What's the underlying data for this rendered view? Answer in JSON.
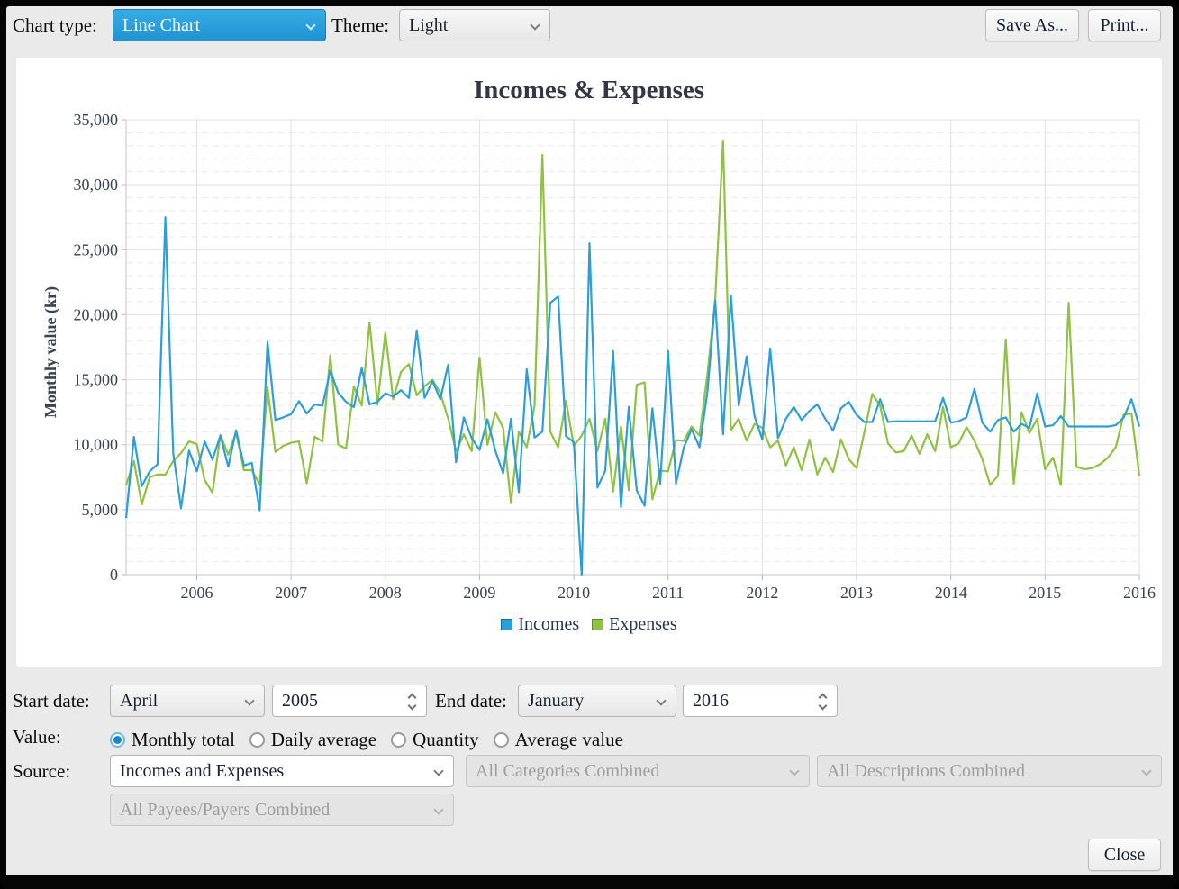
{
  "toolbar": {
    "chart_type_label": "Chart type:",
    "chart_type_value": "Line Chart",
    "theme_label": "Theme:",
    "theme_value": "Light",
    "save_as_label": "Save As...",
    "print_label": "Print..."
  },
  "chart_data": {
    "type": "line",
    "title": "Incomes & Expenses",
    "ylabel": "Monthly value (kr)",
    "ylim": [
      0,
      35000
    ],
    "y_major_step": 5000,
    "y_minor_step": 1000,
    "grid": "on",
    "legend_position": "bottom",
    "x_start_month": "2005-04",
    "x_end_month": "2016-01",
    "x_tick_labels": [
      "2006",
      "2007",
      "2008",
      "2009",
      "2010",
      "2011",
      "2012",
      "2013",
      "2014",
      "2015",
      "2016"
    ],
    "series": [
      {
        "name": "Incomes",
        "color": "#2d9fd8",
        "swatch_border": "#1b6fa0",
        "values": [
          4350,
          10600,
          6800,
          7950,
          8500,
          27500,
          9350,
          5100,
          9550,
          7950,
          10250,
          8850,
          10700,
          8300,
          11100,
          8400,
          8600,
          4950,
          17900,
          11900,
          12100,
          12350,
          13350,
          12400,
          13100,
          13000,
          15700,
          14000,
          13300,
          12900,
          15900,
          13100,
          13300,
          13950,
          13700,
          14200,
          13600,
          18800,
          13600,
          14900,
          13500,
          16150,
          8650,
          12100,
          10500,
          9600,
          11950,
          9550,
          7800,
          12000,
          6350,
          15800,
          10550,
          11000,
          20900,
          21400,
          10650,
          10200,
          0,
          25500,
          6700,
          8000,
          17200,
          5200,
          12900,
          6500,
          5300,
          12800,
          7000,
          17200,
          7000,
          9800,
          11200,
          9800,
          14000,
          21100,
          10800,
          21500,
          13000,
          16800,
          12200,
          10400,
          17400,
          10500,
          12000,
          12900,
          11900,
          12600,
          13100,
          12000,
          11100,
          12800,
          13300,
          12300,
          11750,
          11750,
          13500,
          11750,
          11800,
          11800,
          11800,
          11800,
          11800,
          11800,
          13600,
          11700,
          11800,
          12100,
          14300,
          11700,
          11000,
          11900,
          12100,
          11000,
          11600,
          11300,
          13950,
          11400,
          11500,
          12200,
          11400,
          11400,
          11400,
          11400,
          11400,
          11400,
          11500,
          12100,
          13500,
          11400
        ]
      },
      {
        "name": "Expenses",
        "color": "#8fc241",
        "swatch_border": "#5d8a28",
        "values": [
          6900,
          8750,
          5400,
          7500,
          7700,
          7700,
          8750,
          9350,
          10250,
          10050,
          7280,
          6300,
          10740,
          9220,
          10950,
          8040,
          8040,
          6930,
          14420,
          9430,
          9910,
          10150,
          10250,
          7030,
          10620,
          10250,
          16870,
          10000,
          9700,
          14500,
          13000,
          19400,
          13100,
          18600,
          13500,
          15600,
          16200,
          13800,
          14500,
          15000,
          14000,
          12000,
          9500,
          10800,
          9500,
          16700,
          10000,
          12500,
          11300,
          5500,
          11000,
          9800,
          13000,
          32300,
          11000,
          9800,
          13400,
          9900,
          10700,
          12000,
          9500,
          12000,
          6400,
          11400,
          6500,
          14600,
          14800,
          5800,
          8000,
          7950,
          10350,
          10300,
          11400,
          10700,
          15350,
          21200,
          33400,
          11100,
          12000,
          10300,
          11600,
          11300,
          9800,
          10300,
          8400,
          9800,
          8050,
          10400,
          7700,
          9000,
          7900,
          10400,
          8900,
          8200,
          11000,
          13900,
          13000,
          10100,
          9400,
          9500,
          10700,
          9300,
          10800,
          9500,
          12900,
          9800,
          10100,
          11350,
          10300,
          8900,
          6900,
          7600,
          18100,
          7000,
          12500,
          10900,
          12000,
          8100,
          9000,
          6900,
          20900,
          8300,
          8100,
          8200,
          8500,
          9000,
          9800,
          12300,
          12400,
          7600
        ]
      }
    ]
  },
  "controls": {
    "start_date_label": "Start date:",
    "start_month": "April",
    "start_year": "2005",
    "end_date_label": "End date:",
    "end_month": "January",
    "end_year": "2016",
    "value_label": "Value:",
    "value_options": [
      {
        "label": "Monthly total",
        "selected": true
      },
      {
        "label": "Daily average",
        "selected": false
      },
      {
        "label": "Quantity",
        "selected": false
      },
      {
        "label": "Average value",
        "selected": false
      }
    ],
    "source_label": "Source:",
    "source_primary": "Incomes and Expenses",
    "source_categories": "All Categories Combined",
    "source_descriptions": "All Descriptions Combined",
    "source_payees": "All Payees/Payers Combined",
    "close_label": "Close"
  }
}
